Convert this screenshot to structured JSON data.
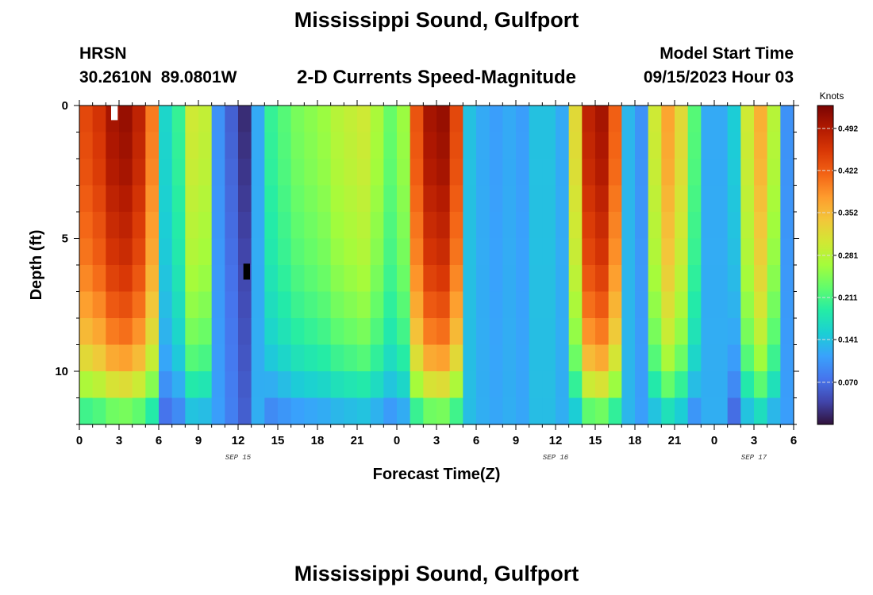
{
  "header": {
    "title": "Mississippi Sound, Gulfport",
    "station_code": "HRSN",
    "coordinates": "30.2610N  89.0801W",
    "subtitle": "2-D Currents Speed-Magnitude",
    "model_start_label": "Model Start Time",
    "model_start_value": "09/15/2023 Hour 03"
  },
  "footer": {
    "repeated_title": "Mississippi Sound, Gulfport"
  },
  "chart_data": {
    "type": "heatmap",
    "title": "2-D Currents Speed-Magnitude",
    "xlabel": "Forecast Time(Z)",
    "ylabel": "Depth (ft)",
    "x_range_hours": [
      0,
      54
    ],
    "y_range_ft": [
      0,
      12
    ],
    "x_ticks": [
      {
        "hour": 0,
        "label": "0"
      },
      {
        "hour": 3,
        "label": "3"
      },
      {
        "hour": 6,
        "label": "6"
      },
      {
        "hour": 9,
        "label": "9"
      },
      {
        "hour": 12,
        "label": "12"
      },
      {
        "hour": 15,
        "label": "15"
      },
      {
        "hour": 18,
        "label": "18"
      },
      {
        "hour": 21,
        "label": "21"
      },
      {
        "hour": 24,
        "label": "0"
      },
      {
        "hour": 27,
        "label": "3"
      },
      {
        "hour": 30,
        "label": "6"
      },
      {
        "hour": 33,
        "label": "9"
      },
      {
        "hour": 36,
        "label": "12"
      },
      {
        "hour": 39,
        "label": "15"
      },
      {
        "hour": 42,
        "label": "18"
      },
      {
        "hour": 45,
        "label": "21"
      },
      {
        "hour": 48,
        "label": "0"
      },
      {
        "hour": 51,
        "label": "3"
      },
      {
        "hour": 54,
        "label": "6"
      }
    ],
    "date_labels": [
      {
        "hour": 12,
        "label": "SEP 15"
      },
      {
        "hour": 36,
        "label": "SEP 16"
      },
      {
        "hour": 51,
        "label": "SEP 17"
      }
    ],
    "y_ticks": [
      {
        "depth": 0,
        "label": "0"
      },
      {
        "depth": 5,
        "label": "5"
      },
      {
        "depth": 10,
        "label": "10"
      }
    ],
    "colorbar": {
      "unit": "Knots",
      "min": 0.0,
      "max": 0.53,
      "ticks": [
        {
          "value": 0.492,
          "label": "0.492"
        },
        {
          "value": 0.422,
          "label": "0.422"
        },
        {
          "value": 0.352,
          "label": "0.352"
        },
        {
          "value": 0.281,
          "label": "0.281"
        },
        {
          "value": 0.211,
          "label": "0.211"
        },
        {
          "value": 0.141,
          "label": "0.141"
        },
        {
          "value": 0.07,
          "label": "0.070"
        }
      ],
      "colors": [
        "#30123b",
        "#4145ab",
        "#4675ed",
        "#39a2fc",
        "#1bcfd4",
        "#24eca6",
        "#61fc6c",
        "#a4fc3b",
        "#d1e834",
        "#f3c63a",
        "#fe9b2d",
        "#f36315",
        "#d93806",
        "#b11901",
        "#7a0402"
      ]
    },
    "surface_speed_by_hour": [
      0.44,
      0.46,
      0.5,
      0.51,
      0.48,
      0.4,
      0.16,
      0.2,
      0.3,
      0.29,
      0.1,
      0.06,
      0.02,
      0.12,
      0.2,
      0.22,
      0.24,
      0.25,
      0.26,
      0.28,
      0.29,
      0.3,
      0.27,
      0.23,
      0.26,
      0.43,
      0.5,
      0.51,
      0.44,
      0.14,
      0.12,
      0.11,
      0.12,
      0.11,
      0.14,
      0.14,
      0.12,
      0.32,
      0.48,
      0.5,
      0.42,
      0.13,
      0.1,
      0.3,
      0.37,
      0.32,
      0.22,
      0.12,
      0.12,
      0.15,
      0.3,
      0.36,
      0.28,
      0.1
    ],
    "depth_profile_fraction_by_ft": [
      1.0,
      0.99,
      0.98,
      0.96,
      0.94,
      0.92,
      0.89,
      0.85,
      0.8,
      0.73,
      0.62,
      0.47
    ],
    "masked_cells": [
      {
        "hour": 2,
        "depth_ft": 0,
        "color": "#ffffff"
      },
      {
        "hour": 12,
        "depth_ft": 6,
        "color": "#000000"
      }
    ]
  }
}
